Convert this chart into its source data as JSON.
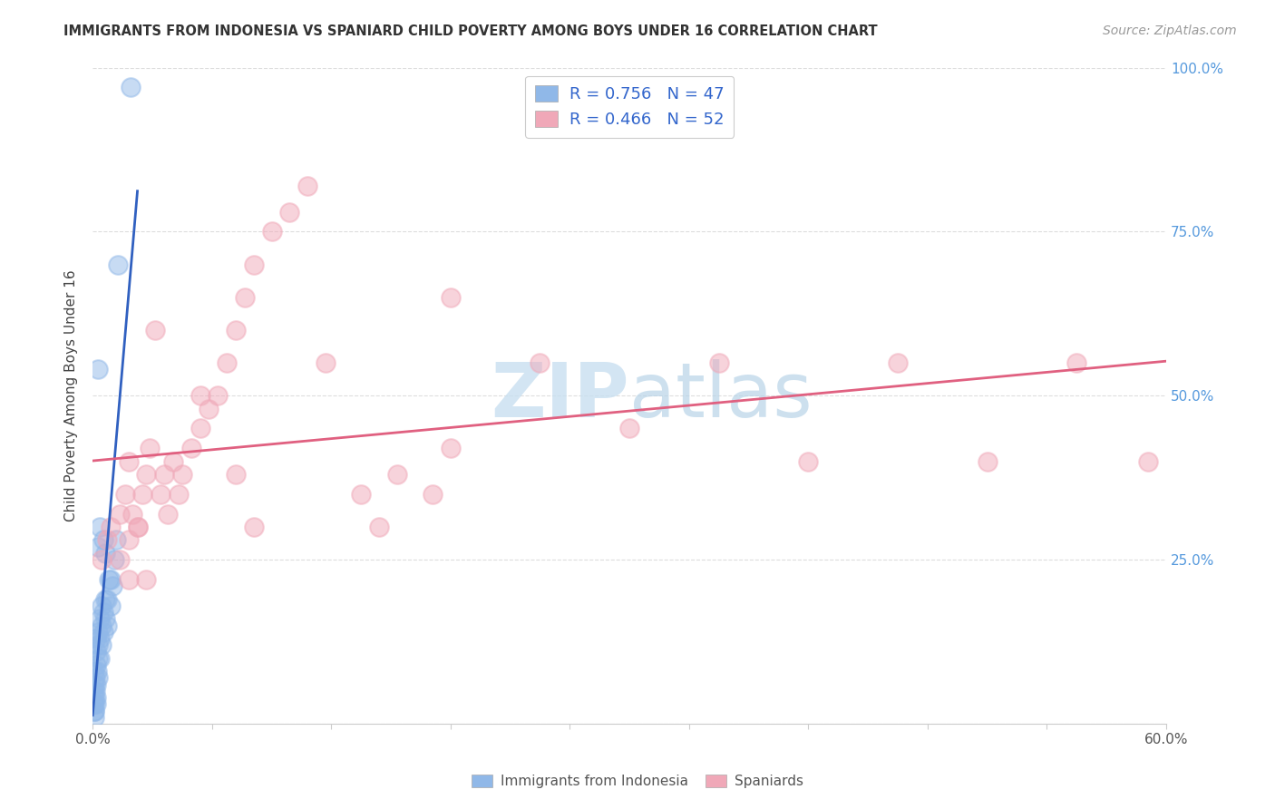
{
  "title": "IMMIGRANTS FROM INDONESIA VS SPANIARD CHILD POVERTY AMONG BOYS UNDER 16 CORRELATION CHART",
  "source": "Source: ZipAtlas.com",
  "ylabel": "Child Poverty Among Boys Under 16",
  "yticks": [
    0,
    0.25,
    0.5,
    0.75,
    1.0
  ],
  "ytick_labels_right": [
    "",
    "25.0%",
    "50.0%",
    "75.0%",
    "100.0%"
  ],
  "xlim": [
    0,
    0.6
  ],
  "ylim": [
    0,
    1.0
  ],
  "legend_r1": "R = 0.756   N = 47",
  "legend_r2": "R = 0.466   N = 52",
  "legend_label1": "Immigrants from Indonesia",
  "legend_label2": "Spaniards",
  "blue_scatter_color": "#90b8e8",
  "pink_scatter_color": "#f0a8b8",
  "blue_line_color": "#3060c0",
  "pink_line_color": "#e06080",
  "watermark_color": "#c8dff0",
  "background_color": "#ffffff",
  "grid_color": "#dddddd",
  "indo_x": [
    0.0005,
    0.0005,
    0.001,
    0.001,
    0.001,
    0.0015,
    0.0015,
    0.002,
    0.002,
    0.002,
    0.002,
    0.0025,
    0.003,
    0.003,
    0.003,
    0.003,
    0.004,
    0.004,
    0.004,
    0.005,
    0.005,
    0.005,
    0.006,
    0.006,
    0.007,
    0.007,
    0.008,
    0.008,
    0.009,
    0.01,
    0.01,
    0.011,
    0.012,
    0.013,
    0.001,
    0.001,
    0.001,
    0.001,
    0.002,
    0.002,
    0.021,
    0.014,
    0.003,
    0.004,
    0.003,
    0.006,
    0.007
  ],
  "indo_y": [
    0.03,
    0.05,
    0.04,
    0.06,
    0.08,
    0.05,
    0.07,
    0.06,
    0.09,
    0.11,
    0.13,
    0.08,
    0.07,
    0.1,
    0.12,
    0.14,
    0.1,
    0.13,
    0.16,
    0.12,
    0.15,
    0.18,
    0.14,
    0.17,
    0.16,
    0.19,
    0.15,
    0.19,
    0.22,
    0.18,
    0.22,
    0.21,
    0.25,
    0.28,
    0.02,
    0.03,
    0.01,
    0.02,
    0.03,
    0.04,
    0.97,
    0.7,
    0.54,
    0.3,
    0.27,
    0.28,
    0.26
  ],
  "span_x": [
    0.005,
    0.008,
    0.01,
    0.015,
    0.018,
    0.02,
    0.02,
    0.022,
    0.025,
    0.028,
    0.03,
    0.032,
    0.035,
    0.038,
    0.04,
    0.042,
    0.045,
    0.048,
    0.05,
    0.055,
    0.06,
    0.065,
    0.07,
    0.075,
    0.08,
    0.085,
    0.09,
    0.1,
    0.11,
    0.12,
    0.13,
    0.15,
    0.16,
    0.17,
    0.19,
    0.2,
    0.25,
    0.3,
    0.35,
    0.4,
    0.45,
    0.5,
    0.55,
    0.59,
    0.015,
    0.02,
    0.025,
    0.03,
    0.06,
    0.08,
    0.09,
    0.2
  ],
  "span_y": [
    0.25,
    0.28,
    0.3,
    0.32,
    0.35,
    0.28,
    0.4,
    0.32,
    0.3,
    0.35,
    0.38,
    0.42,
    0.6,
    0.35,
    0.38,
    0.32,
    0.4,
    0.35,
    0.38,
    0.42,
    0.45,
    0.48,
    0.5,
    0.55,
    0.6,
    0.65,
    0.7,
    0.75,
    0.78,
    0.82,
    0.55,
    0.35,
    0.3,
    0.38,
    0.35,
    0.42,
    0.55,
    0.45,
    0.55,
    0.4,
    0.55,
    0.4,
    0.55,
    0.4,
    0.25,
    0.22,
    0.3,
    0.22,
    0.5,
    0.38,
    0.3,
    0.65
  ]
}
